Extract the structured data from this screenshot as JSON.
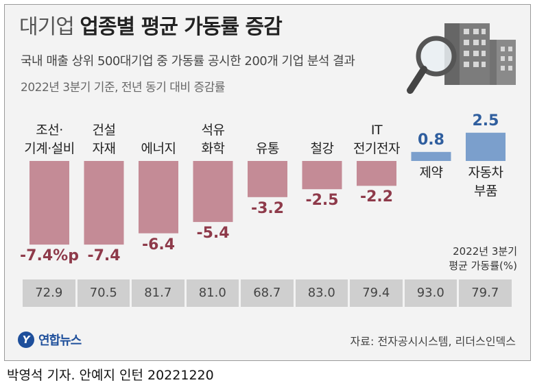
{
  "header": {
    "title_light": "대기업",
    "title_bold": "업종별 평균 가동률 증감",
    "subtitle": "국내 매출 상위 500대기업 중 가동률 공시한 200개 기업 분석 결과",
    "note": "2022년 3분기 기준, 전년 동기 대비 증감률"
  },
  "chart_data": {
    "type": "bar",
    "title": "업종별 평균 가동률 증감",
    "categories": [
      "조선·기계·설비",
      "건설자재",
      "에너지",
      "석유화학",
      "유통",
      "철강",
      "IT전기전자",
      "제약",
      "자동차부품"
    ],
    "category_lines": [
      [
        "조선·",
        "기계·설비"
      ],
      [
        "건설",
        "자재"
      ],
      [
        "에너지"
      ],
      [
        "석유",
        "화학"
      ],
      [
        "유통"
      ],
      [
        "철강"
      ],
      [
        "IT",
        "전기전자"
      ],
      [
        "제약"
      ],
      [
        "자동차",
        "부품"
      ]
    ],
    "values": [
      -7.4,
      -7.4,
      -6.4,
      -5.4,
      -3.2,
      -2.5,
      -2.2,
      0.8,
      2.5
    ],
    "value_labels": [
      "-7.4%p",
      "-7.4",
      "-6.4",
      "-5.4",
      "-3.2",
      "-2.5",
      "-2.2",
      "0.8",
      "2.5"
    ],
    "unit": "%p",
    "colors": {
      "negative": "#c48b96",
      "positive": "#7b9fcc",
      "negative_text": "#8e3a4a",
      "positive_text": "#2f5e9e"
    },
    "rate_label": [
      "2022년 3분기",
      "평균 가동률(%)"
    ],
    "rates": [
      "72.9",
      "70.5",
      "81.7",
      "81.0",
      "68.7",
      "83.0",
      "79.4",
      "93.0",
      "79.7"
    ],
    "grid": false
  },
  "footer": {
    "logo_mark": "Y",
    "logo_text": "연합뉴스",
    "source": "자료: 전자공시시스템, 리더스인덱스",
    "credit": "박영석 기자. 안예지 인턴  20221220"
  }
}
